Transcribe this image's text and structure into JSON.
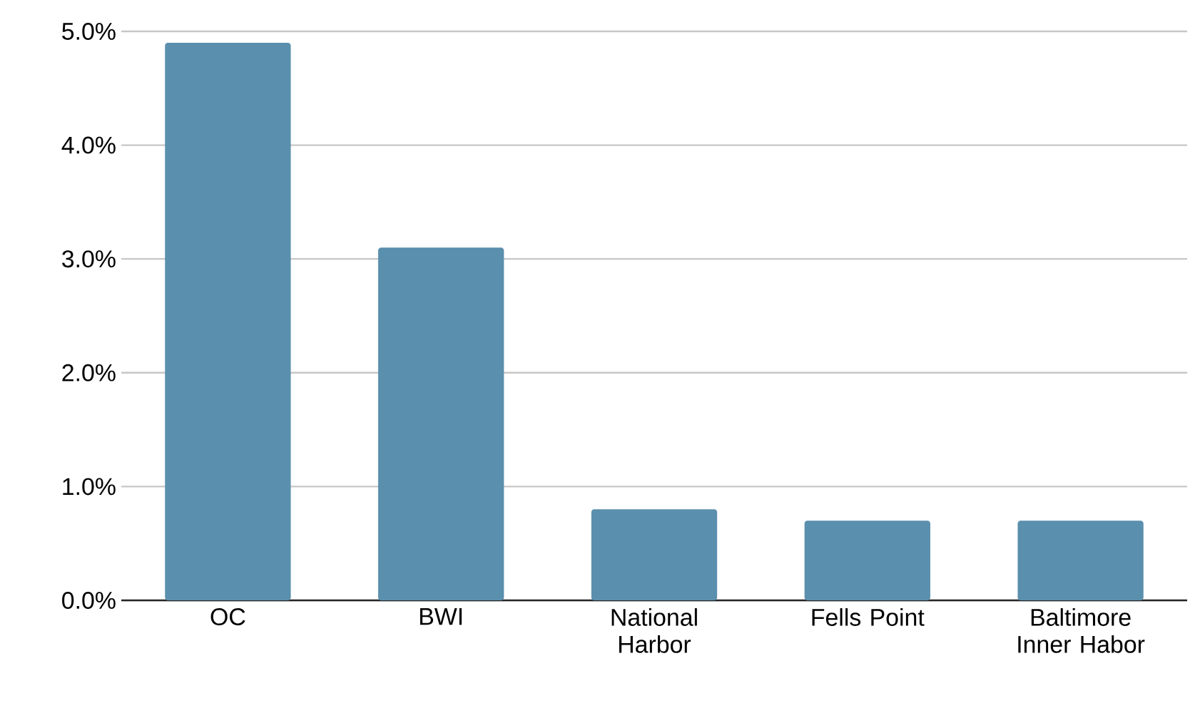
{
  "chart_data": {
    "type": "bar",
    "categories": [
      "OC",
      "BWI",
      "National Harbor",
      "Fells Point",
      "Baltimore Inner Habor"
    ],
    "values": [
      4.9,
      3.1,
      0.8,
      0.7,
      0.7
    ],
    "color": "#5a8fad",
    "ylim": [
      0,
      5
    ],
    "yticks": [
      {
        "value": 0,
        "label": "0.0%"
      },
      {
        "value": 1,
        "label": "1.0%"
      },
      {
        "value": 2,
        "label": "2.0%"
      },
      {
        "value": 3,
        "label": "3.0%"
      },
      {
        "value": 4,
        "label": "4.0%"
      },
      {
        "value": 5,
        "label": "5.0%"
      }
    ],
    "grid": "y"
  }
}
